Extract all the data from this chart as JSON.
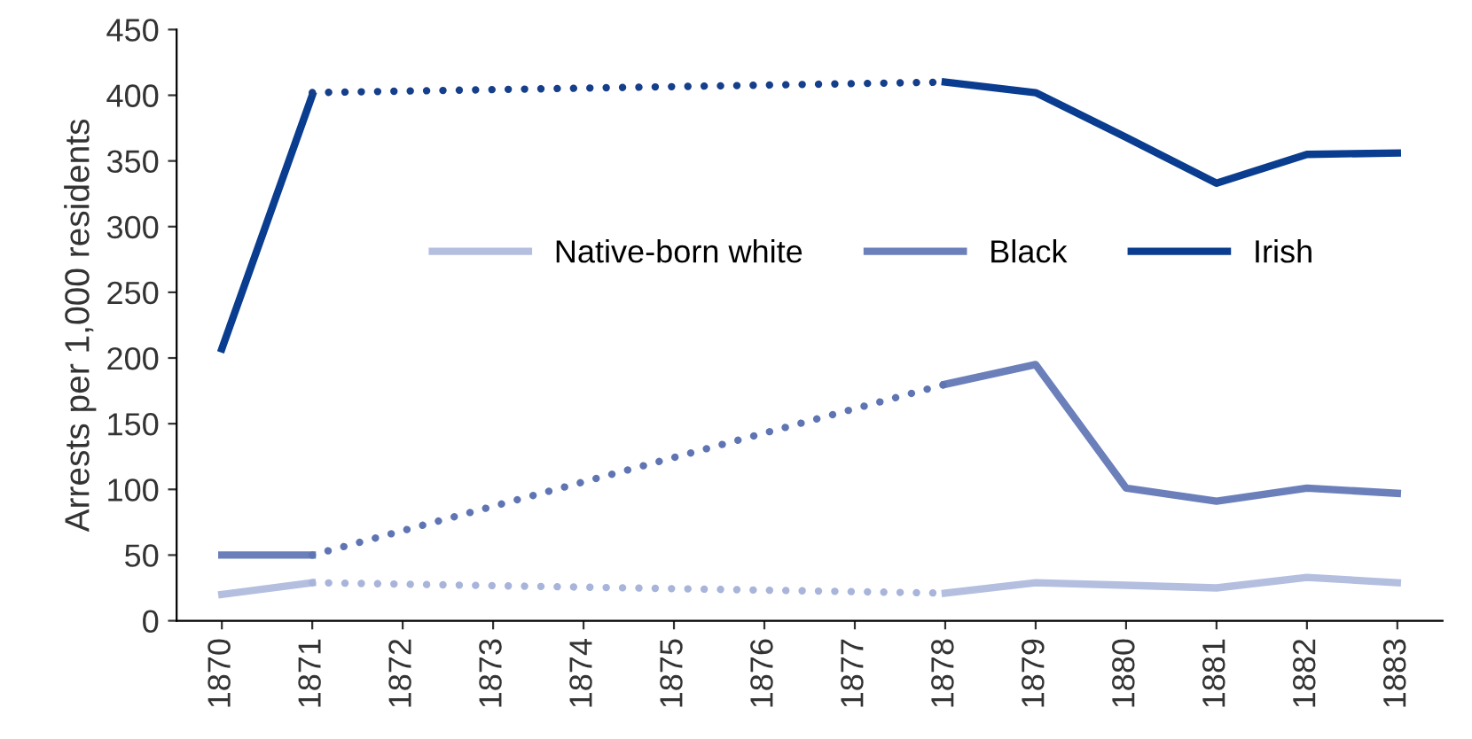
{
  "chart_data": {
    "type": "line",
    "ylabel": "Arrests per 1,000 residents",
    "categories": [
      "1870",
      "1871",
      "1872",
      "1873",
      "1874",
      "1875",
      "1876",
      "1877",
      "1878",
      "1879",
      "1880",
      "1881",
      "1882",
      "1883"
    ],
    "series": [
      {
        "name": "Native-born white",
        "color": "#b4bfe0",
        "line_style": "solid",
        "values": [
          20,
          29,
          null,
          null,
          null,
          null,
          null,
          null,
          21,
          29,
          27,
          25,
          33,
          29
        ]
      },
      {
        "name": "Black",
        "color": "#6b7fba",
        "line_style": "solid",
        "values": [
          50,
          50,
          null,
          null,
          null,
          null,
          null,
          null,
          180,
          195,
          101,
          91,
          101,
          97
        ]
      },
      {
        "name": "Irish",
        "color": "#0a3d8f",
        "line_style": "solid",
        "values": [
          207,
          400,
          null,
          null,
          null,
          null,
          null,
          null,
          410,
          402,
          368,
          333,
          355,
          356
        ]
      },
      {
        "color": "#a8b4da",
        "line_style": "dotted",
        "values": [
          null,
          29,
          null,
          null,
          null,
          null,
          null,
          null,
          21,
          null,
          null,
          null,
          null,
          null
        ]
      },
      {
        "color": "#5f74b2",
        "line_style": "dotted",
        "values": [
          null,
          50,
          null,
          null,
          null,
          null,
          null,
          null,
          180,
          null,
          null,
          null,
          null,
          null
        ]
      },
      {
        "color": "#153f8a",
        "line_style": "dotted",
        "values": [
          null,
          402,
          null,
          null,
          null,
          null,
          null,
          null,
          410,
          null,
          null,
          null,
          null,
          null
        ]
      }
    ],
    "ylim": [
      0,
      450
    ],
    "yticks": [
      0,
      50,
      100,
      150,
      200,
      250,
      300,
      350,
      400,
      450
    ],
    "grid": false,
    "legend": "center"
  }
}
